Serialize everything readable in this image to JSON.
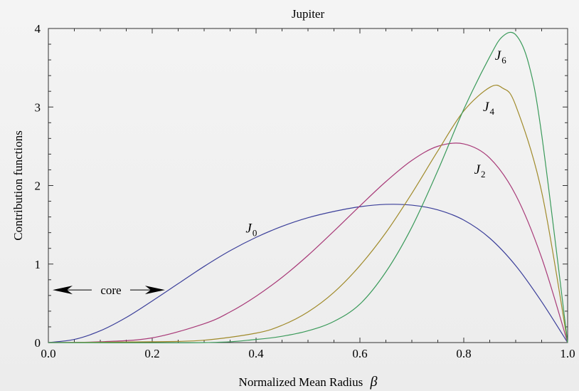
{
  "chart_data": {
    "type": "line",
    "title": "Jupiter",
    "xlabel": "Normalized Mean Radius",
    "xlabel_symbol": "β",
    "ylabel": "Contribution functions",
    "xlim": [
      0.0,
      1.0
    ],
    "ylim": [
      0,
      4
    ],
    "xticks": [
      "0.0",
      "0.2",
      "0.4",
      "0.6",
      "0.8",
      "1.0"
    ],
    "yticks": [
      "0",
      "1",
      "2",
      "3",
      "4"
    ],
    "grid": false,
    "annotation": {
      "text": "core",
      "x_from": 0.0,
      "x_to": 0.23,
      "y": 0.67
    },
    "series": [
      {
        "name": "J0",
        "label_main": "J",
        "label_sub": "0",
        "label_pos": [
          0.38,
          1.4
        ],
        "color": "#3b3f9a",
        "x": [
          0.0,
          0.05,
          0.1,
          0.15,
          0.2,
          0.25,
          0.3,
          0.35,
          0.4,
          0.45,
          0.5,
          0.55,
          0.6,
          0.65,
          0.7,
          0.75,
          0.8,
          0.85,
          0.9,
          0.95,
          1.0
        ],
        "y": [
          0.0,
          0.04,
          0.15,
          0.32,
          0.53,
          0.75,
          0.97,
          1.17,
          1.34,
          1.48,
          1.59,
          1.67,
          1.73,
          1.76,
          1.75,
          1.69,
          1.56,
          1.33,
          0.98,
          0.52,
          0.0
        ]
      },
      {
        "name": "J2",
        "label_main": "J",
        "label_sub": "2",
        "label_pos": [
          0.82,
          2.15
        ],
        "color": "#a83a78",
        "x": [
          0.0,
          0.1,
          0.2,
          0.3,
          0.35,
          0.4,
          0.45,
          0.5,
          0.55,
          0.6,
          0.65,
          0.7,
          0.75,
          0.8,
          0.85,
          0.9,
          0.95,
          1.0
        ],
        "y": [
          0.0,
          0.01,
          0.06,
          0.24,
          0.39,
          0.59,
          0.83,
          1.11,
          1.42,
          1.74,
          2.05,
          2.32,
          2.5,
          2.53,
          2.35,
          1.88,
          1.08,
          0.0
        ]
      },
      {
        "name": "J4",
        "label_main": "J",
        "label_sub": "4",
        "label_pos": [
          0.837,
          2.95
        ],
        "color": "#a08a2a",
        "x": [
          0.0,
          0.2,
          0.3,
          0.4,
          0.45,
          0.5,
          0.55,
          0.6,
          0.65,
          0.7,
          0.75,
          0.8,
          0.85,
          0.875,
          0.9,
          0.95,
          1.0
        ],
        "y": [
          0.0,
          0.01,
          0.03,
          0.12,
          0.22,
          0.39,
          0.64,
          0.98,
          1.4,
          1.9,
          2.44,
          2.95,
          3.25,
          3.24,
          3.02,
          1.92,
          0.0
        ]
      },
      {
        "name": "J6",
        "label_main": "J",
        "label_sub": "6",
        "label_pos": [
          0.86,
          3.6
        ],
        "color": "#3a9a5a",
        "x": [
          0.0,
          0.3,
          0.4,
          0.45,
          0.5,
          0.55,
          0.6,
          0.65,
          0.7,
          0.75,
          0.8,
          0.85,
          0.875,
          0.9,
          0.925,
          0.95,
          1.0
        ],
        "y": [
          0.0,
          0.0,
          0.04,
          0.08,
          0.15,
          0.27,
          0.49,
          0.9,
          1.47,
          2.19,
          2.97,
          3.64,
          3.9,
          3.92,
          3.55,
          2.65,
          0.0
        ]
      }
    ]
  }
}
